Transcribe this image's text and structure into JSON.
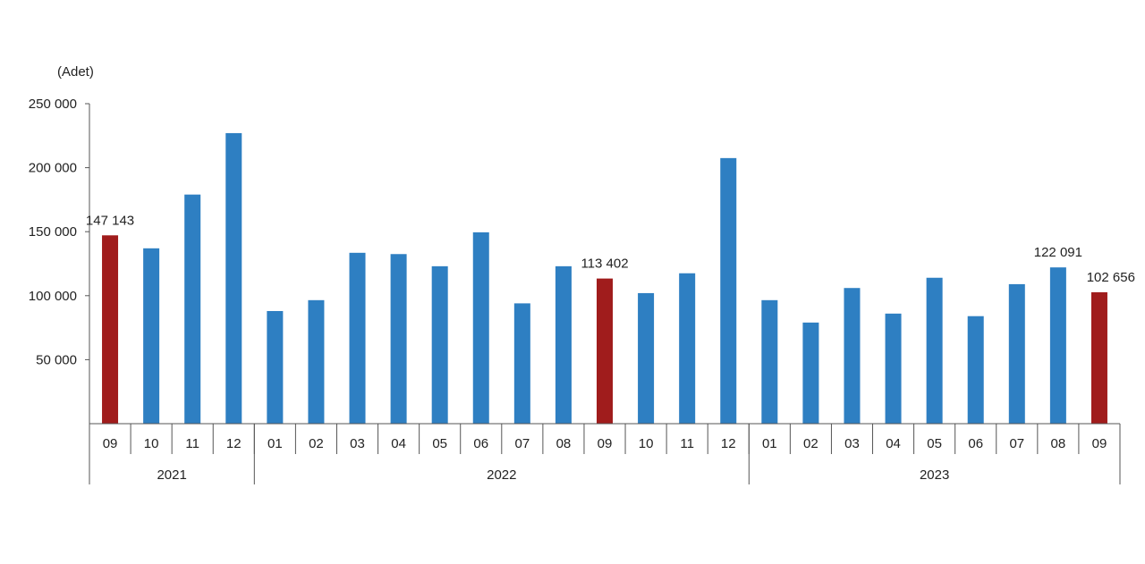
{
  "chart_data": {
    "type": "bar",
    "ylabel": "(Adet)",
    "ylim": [
      0,
      250000
    ],
    "yticks": [
      "250 000",
      "200 000",
      "150 000",
      "100 000",
      "50 000"
    ],
    "ytick_values": [
      250000,
      200000,
      150000,
      100000,
      50000
    ],
    "categories": [
      "09",
      "10",
      "11",
      "12",
      "01",
      "02",
      "03",
      "04",
      "05",
      "06",
      "07",
      "08",
      "09",
      "10",
      "11",
      "12",
      "01",
      "02",
      "03",
      "04",
      "05",
      "06",
      "07",
      "08",
      "09"
    ],
    "values": [
      147143,
      137000,
      179000,
      227000,
      88000,
      96500,
      133500,
      132500,
      123000,
      149500,
      94000,
      123000,
      113402,
      102000,
      117500,
      207500,
      96500,
      79000,
      106000,
      86000,
      114000,
      84000,
      109000,
      122091,
      102656
    ],
    "highlight_color": "#a01c1c",
    "bar_color": "#2e7fc2",
    "highlighted_indices": [
      0,
      12,
      24
    ],
    "data_labels": [
      {
        "index": 0,
        "text": "147 143"
      },
      {
        "index": 12,
        "text": "113 402"
      },
      {
        "index": 23,
        "text": "122 091"
      },
      {
        "index": 24,
        "text": "102 656"
      }
    ],
    "year_groups": [
      {
        "label": "2021",
        "start": 0,
        "end": 3
      },
      {
        "label": "2022",
        "start": 4,
        "end": 15
      },
      {
        "label": "2023",
        "start": 16,
        "end": 24
      }
    ]
  }
}
